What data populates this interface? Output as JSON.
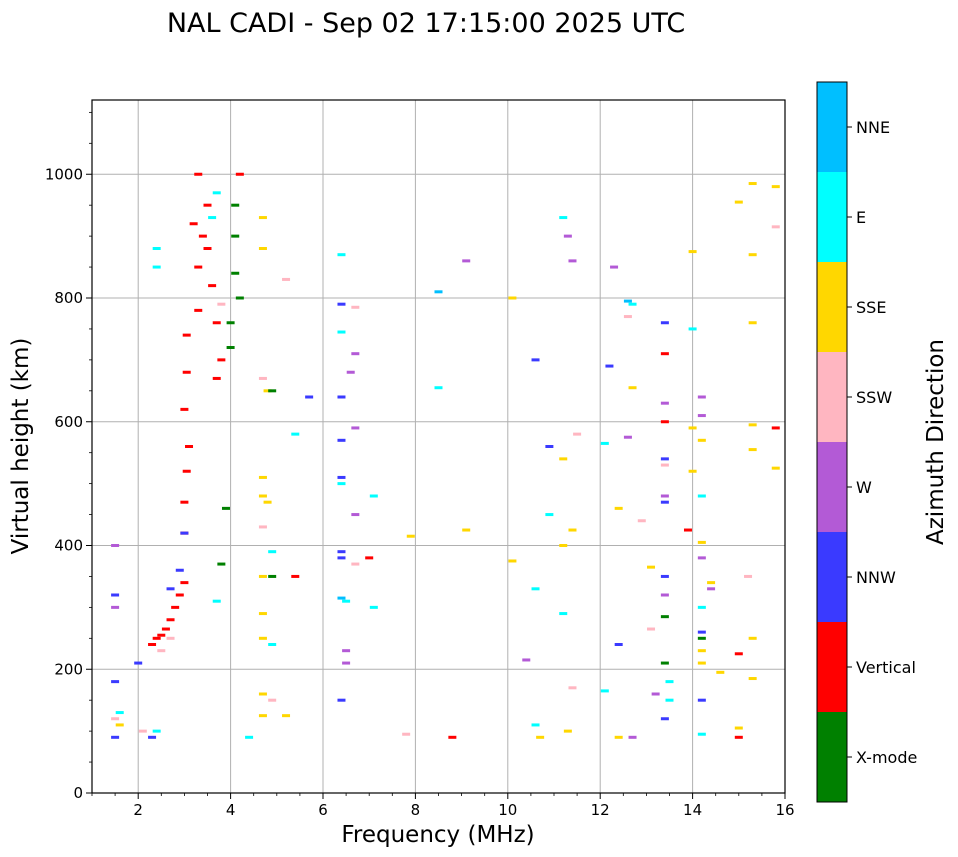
{
  "chart_data": {
    "type": "scatter",
    "title": "NAL CADI - Sep 02 17:15:00 2025 UTC",
    "xlabel": "Frequency (MHz)",
    "ylabel": "Virtual height (km)",
    "xlim": [
      1,
      16
    ],
    "ylim": [
      0,
      1120
    ],
    "xticks": [
      2,
      4,
      6,
      8,
      10,
      12,
      14,
      16
    ],
    "xtick_labels": [
      "2",
      "4",
      "6",
      "8",
      "10",
      "12",
      "14",
      "16"
    ],
    "yticks": [
      0,
      200,
      400,
      600,
      800,
      1000
    ],
    "ytick_labels": [
      "0",
      "200",
      "400",
      "600",
      "800",
      "1000"
    ],
    "grid": true,
    "colorbar": {
      "label": "Azimuth Direction",
      "categories": [
        "X-mode",
        "Vertical",
        "NNW",
        "W",
        "SSW",
        "SSE",
        "E",
        "NNE"
      ],
      "colors": [
        "#008000",
        "#ff0000",
        "#3a3aff",
        "#b35ad6",
        "#ffb6c1",
        "#ffd700",
        "#00ffff",
        "#00bfff"
      ]
    },
    "series": [
      {
        "name": "Vertical",
        "points": [
          [
            2.3,
            240
          ],
          [
            2.4,
            250
          ],
          [
            2.5,
            255
          ],
          [
            2.6,
            265
          ],
          [
            2.7,
            280
          ],
          [
            2.8,
            300
          ],
          [
            2.9,
            320
          ],
          [
            3.0,
            340
          ],
          [
            3.0,
            420
          ],
          [
            3.0,
            470
          ],
          [
            3.05,
            520
          ],
          [
            3.1,
            560
          ],
          [
            3.0,
            620
          ],
          [
            3.05,
            680
          ],
          [
            3.05,
            740
          ],
          [
            3.3,
            780
          ],
          [
            3.3,
            850
          ],
          [
            3.4,
            900
          ],
          [
            3.5,
            950
          ],
          [
            3.3,
            1000
          ],
          [
            3.6,
            820
          ],
          [
            3.7,
            760
          ],
          [
            3.8,
            700
          ],
          [
            3.7,
            670
          ],
          [
            4.2,
            1000
          ],
          [
            8.8,
            90
          ],
          [
            5.4,
            350
          ],
          [
            7.0,
            380
          ],
          [
            13.4,
            710
          ],
          [
            13.4,
            600
          ],
          [
            13.9,
            425
          ],
          [
            15.0,
            225
          ],
          [
            15.0,
            90
          ],
          [
            15.8,
            590
          ],
          [
            3.2,
            920
          ],
          [
            3.5,
            880
          ]
        ]
      },
      {
        "name": "NNW",
        "points": [
          [
            1.5,
            90
          ],
          [
            1.5,
            180
          ],
          [
            1.5,
            320
          ],
          [
            2.0,
            210
          ],
          [
            2.3,
            90
          ],
          [
            2.7,
            330
          ],
          [
            2.9,
            360
          ],
          [
            3.0,
            420
          ],
          [
            6.4,
            570
          ],
          [
            6.4,
            510
          ],
          [
            6.4,
            390
          ],
          [
            6.4,
            380
          ],
          [
            6.4,
            150
          ],
          [
            6.4,
            790
          ],
          [
            6.4,
            640
          ],
          [
            10.6,
            700
          ],
          [
            10.9,
            560
          ],
          [
            12.2,
            690
          ],
          [
            12.4,
            240
          ],
          [
            13.4,
            760
          ],
          [
            13.4,
            540
          ],
          [
            13.4,
            470
          ],
          [
            13.4,
            350
          ],
          [
            13.4,
            120
          ],
          [
            14.2,
            260
          ],
          [
            14.2,
            150
          ],
          [
            5.7,
            640
          ]
        ]
      },
      {
        "name": "W",
        "points": [
          [
            1.5,
            400
          ],
          [
            1.5,
            300
          ],
          [
            6.5,
            230
          ],
          [
            6.5,
            210
          ],
          [
            6.6,
            680
          ],
          [
            6.7,
            710
          ],
          [
            6.7,
            590
          ],
          [
            6.7,
            450
          ],
          [
            9.1,
            860
          ],
          [
            11.3,
            900
          ],
          [
            11.4,
            860
          ],
          [
            12.3,
            850
          ],
          [
            12.6,
            575
          ],
          [
            13.4,
            630
          ],
          [
            13.4,
            480
          ],
          [
            13.4,
            320
          ],
          [
            14.2,
            610
          ],
          [
            14.2,
            640
          ],
          [
            14.2,
            380
          ],
          [
            14.4,
            330
          ],
          [
            12.7,
            90
          ],
          [
            13.2,
            160
          ],
          [
            10.4,
            215
          ]
        ]
      },
      {
        "name": "SSW",
        "points": [
          [
            1.5,
            120
          ],
          [
            2.1,
            100
          ],
          [
            2.5,
            230
          ],
          [
            2.7,
            250
          ],
          [
            3.8,
            790
          ],
          [
            4.7,
            670
          ],
          [
            4.7,
            430
          ],
          [
            4.9,
            150
          ],
          [
            5.2,
            830
          ],
          [
            6.7,
            785
          ],
          [
            6.7,
            370
          ],
          [
            7.8,
            95
          ],
          [
            11.5,
            580
          ],
          [
            12.6,
            770
          ],
          [
            12.9,
            440
          ],
          [
            13.4,
            530
          ],
          [
            15.2,
            350
          ],
          [
            15.8,
            915
          ],
          [
            11.4,
            170
          ],
          [
            13.1,
            265
          ]
        ]
      },
      {
        "name": "SSE",
        "points": [
          [
            1.6,
            110
          ],
          [
            4.7,
            930
          ],
          [
            4.7,
            880
          ],
          [
            4.8,
            650
          ],
          [
            4.7,
            510
          ],
          [
            4.7,
            480
          ],
          [
            4.8,
            470
          ],
          [
            4.7,
            350
          ],
          [
            4.7,
            290
          ],
          [
            4.7,
            250
          ],
          [
            4.7,
            160
          ],
          [
            4.7,
            125
          ],
          [
            5.2,
            125
          ],
          [
            7.9,
            415
          ],
          [
            9.1,
            425
          ],
          [
            10.1,
            375
          ],
          [
            10.1,
            800
          ],
          [
            10.7,
            90
          ],
          [
            11.2,
            540
          ],
          [
            11.2,
            400
          ],
          [
            11.4,
            425
          ],
          [
            11.3,
            100
          ],
          [
            12.4,
            460
          ],
          [
            12.4,
            90
          ],
          [
            12.7,
            655
          ],
          [
            13.1,
            365
          ],
          [
            14.0,
            875
          ],
          [
            14.0,
            590
          ],
          [
            14.0,
            520
          ],
          [
            14.2,
            570
          ],
          [
            14.2,
            405
          ],
          [
            14.2,
            230
          ],
          [
            14.2,
            210
          ],
          [
            14.4,
            340
          ],
          [
            14.6,
            195
          ],
          [
            15.0,
            955
          ],
          [
            15.3,
            985
          ],
          [
            15.3,
            870
          ],
          [
            15.3,
            760
          ],
          [
            15.3,
            595
          ],
          [
            15.3,
            555
          ],
          [
            15.3,
            250
          ],
          [
            15.3,
            185
          ],
          [
            15.0,
            105
          ],
          [
            15.8,
            980
          ],
          [
            15.8,
            525
          ]
        ]
      },
      {
        "name": "E",
        "points": [
          [
            1.6,
            130
          ],
          [
            2.4,
            880
          ],
          [
            2.4,
            850
          ],
          [
            2.4,
            100
          ],
          [
            3.7,
            970
          ],
          [
            3.6,
            930
          ],
          [
            3.7,
            310
          ],
          [
            4.4,
            90
          ],
          [
            4.9,
            390
          ],
          [
            4.9,
            240
          ],
          [
            5.4,
            580
          ],
          [
            6.4,
            870
          ],
          [
            6.4,
            745
          ],
          [
            6.4,
            500
          ],
          [
            6.5,
            310
          ],
          [
            7.1,
            480
          ],
          [
            7.1,
            300
          ],
          [
            8.5,
            655
          ],
          [
            10.6,
            110
          ],
          [
            10.6,
            330
          ],
          [
            10.9,
            450
          ],
          [
            11.2,
            290
          ],
          [
            11.2,
            930
          ],
          [
            12.7,
            790
          ],
          [
            13.5,
            180
          ],
          [
            13.5,
            150
          ],
          [
            14.0,
            750
          ],
          [
            14.2,
            480
          ],
          [
            14.2,
            300
          ],
          [
            14.2,
            95
          ],
          [
            12.1,
            565
          ],
          [
            12.1,
            165
          ]
        ]
      },
      {
        "name": "NNE",
        "points": [
          [
            8.5,
            810
          ],
          [
            6.4,
            315
          ],
          [
            12.6,
            795
          ]
        ]
      },
      {
        "name": "X-mode",
        "points": [
          [
            4.1,
            950
          ],
          [
            4.1,
            900
          ],
          [
            4.1,
            840
          ],
          [
            4.2,
            800
          ],
          [
            4.0,
            760
          ],
          [
            4.0,
            720
          ],
          [
            3.9,
            460
          ],
          [
            3.8,
            370
          ],
          [
            4.9,
            650
          ],
          [
            4.9,
            350
          ],
          [
            13.4,
            285
          ],
          [
            13.4,
            210
          ],
          [
            14.2,
            250
          ]
        ]
      }
    ]
  }
}
